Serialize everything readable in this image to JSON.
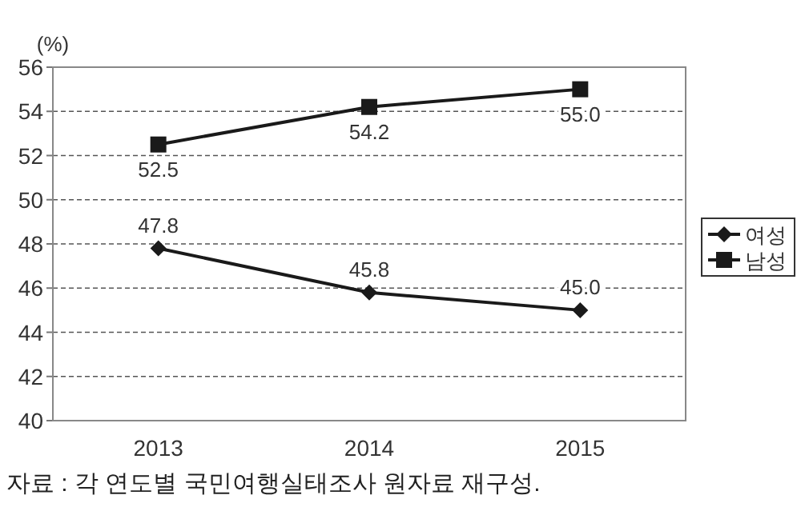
{
  "chart_data": {
    "type": "line",
    "ylabel": "(%)",
    "categories": [
      "2013",
      "2014",
      "2015"
    ],
    "series": [
      {
        "name": "여성",
        "color": "#1a1a1a",
        "marker": "diamond",
        "values": [
          47.8,
          45.8,
          45.0
        ],
        "value_labels": [
          "47.8",
          "45.8",
          "45.0"
        ]
      },
      {
        "name": "남성",
        "color": "#1a1a1a",
        "marker": "square",
        "values": [
          52.5,
          54.2,
          55.0
        ],
        "value_labels": [
          "52.5",
          "54.2",
          "55.0"
        ]
      }
    ],
    "ylim": [
      40,
      56
    ],
    "yticks": [
      40,
      42,
      44,
      46,
      48,
      50,
      52,
      54,
      56
    ],
    "grid": "y",
    "legend": "right",
    "annotations": [
      "자료 : 각 연도별 국민여행실태조사 원자료 재구성."
    ]
  }
}
